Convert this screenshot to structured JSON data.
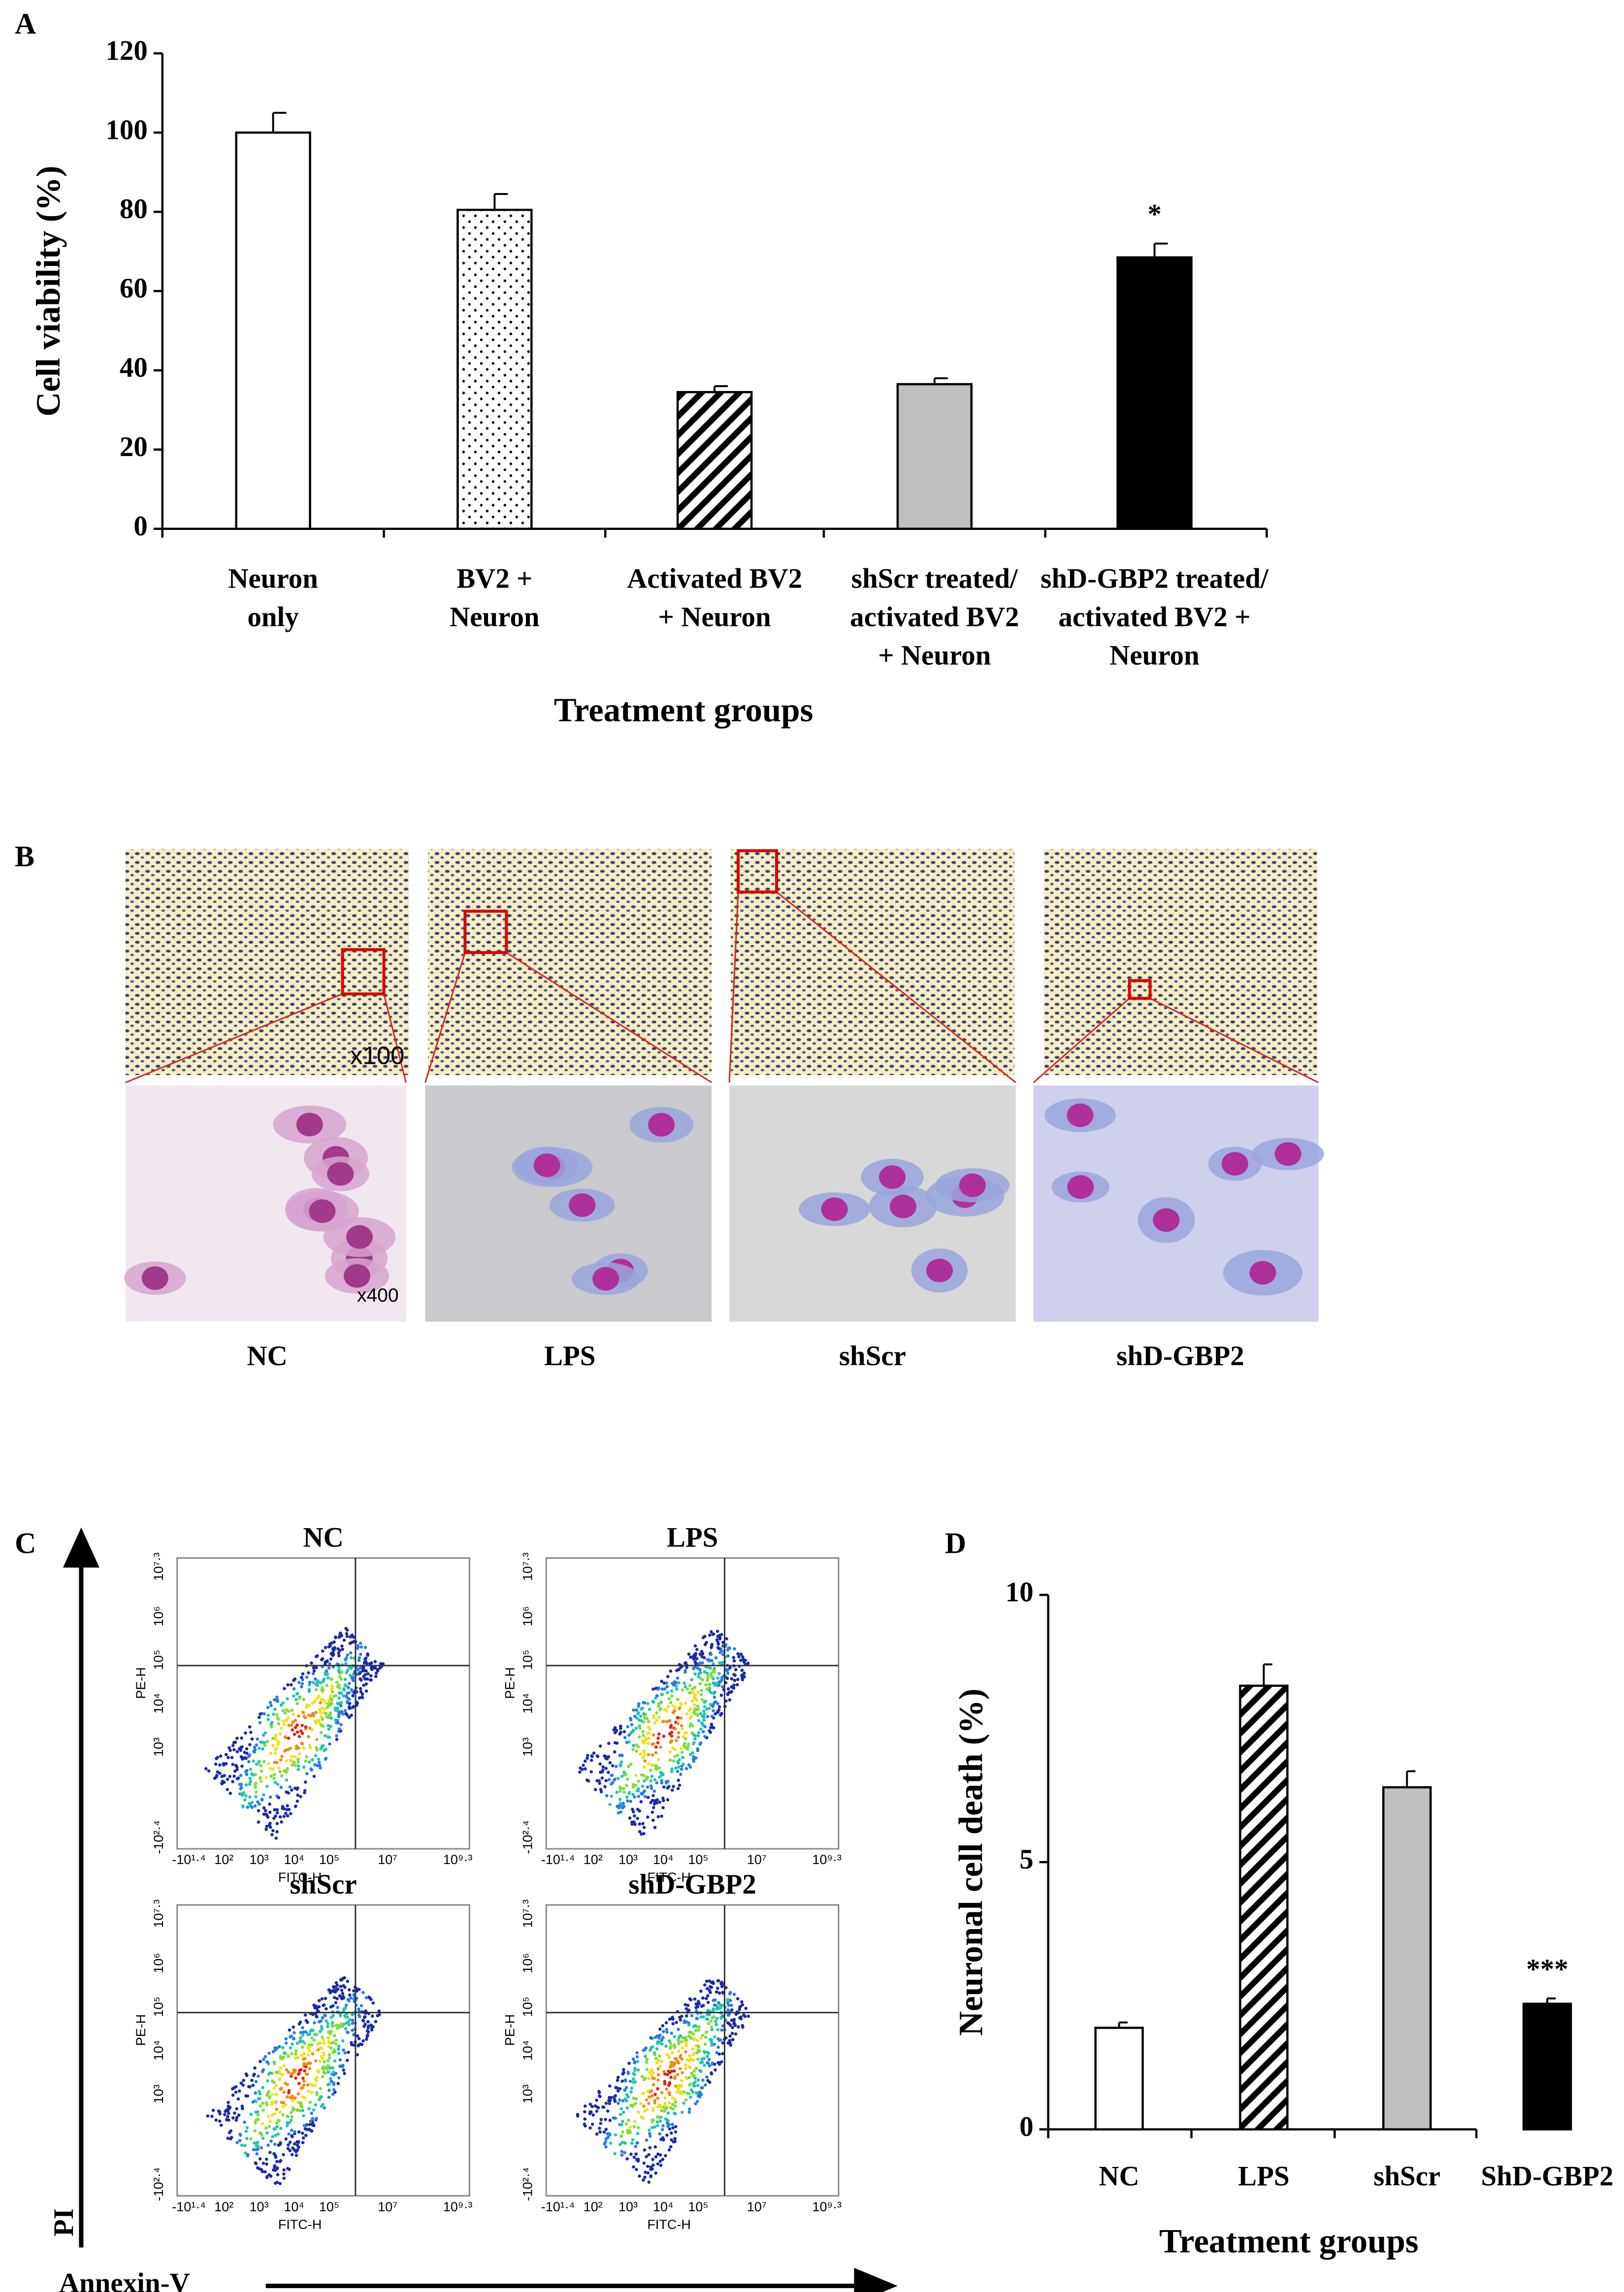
{
  "chart_data": [
    {
      "type": "bar",
      "panel": "A",
      "ylabel": "Cell viability (%)",
      "xlabel": "Treatment groups",
      "categories": [
        "Neuron\nonly",
        "BV2 +\nNeuron",
        "Activated BV2\n+ Neuron",
        "shScr treated/\nactivated BV2\n+ Neuron",
        "shD-GBP2 treated/\nactivated BV2 +\nNeuron"
      ],
      "values": [
        100,
        80.5,
        34.5,
        36.5,
        68.5
      ],
      "errors": [
        5,
        4,
        1.5,
        1.5,
        3.5
      ],
      "colors": [
        "#ffffff",
        "#ffffff",
        "#ffffff",
        "#c0c0c0",
        "#000000"
      ],
      "patterns": [
        "none",
        "dots",
        "hatch",
        "none",
        "none"
      ],
      "annotations": [
        {
          "text": "*",
          "index": 4
        }
      ],
      "ylim": [
        0,
        120
      ],
      "yticks": [
        0,
        20,
        40,
        60,
        80,
        100,
        120
      ]
    },
    {
      "type": "bar",
      "panel": "D",
      "ylabel": "Neuronal cell death (%)",
      "xlabel": "Treatment groups",
      "categories": [
        "NC",
        "LPS",
        "shScr",
        "ShD-GBP2"
      ],
      "values": [
        1.9,
        8.3,
        6.4,
        2.35
      ],
      "errors": [
        0.1,
        0.4,
        0.3,
        0.1
      ],
      "colors": [
        "#ffffff",
        "#ffffff",
        "#c0c0c0",
        "#000000"
      ],
      "patterns": [
        "none",
        "hatch",
        "none",
        "none"
      ],
      "annotations": [
        {
          "text": "***",
          "index": 3
        }
      ],
      "ylim": [
        0,
        10
      ],
      "yticks": [
        0,
        5,
        10
      ]
    }
  ],
  "micrographs": {
    "panel": "B",
    "labels": [
      "NC",
      "LPS",
      "shScr",
      "shD-GBP2"
    ],
    "magnifications": [
      "x100",
      "x400"
    ]
  },
  "flow": {
    "panel": "C",
    "titles": [
      "NC",
      "LPS",
      "shScr",
      "shD-GBP2"
    ],
    "x_label": "FITC-H",
    "y_label": "PE-H",
    "x_ticks": [
      "-10¹·⁴",
      "10²",
      "10³",
      "10⁴",
      "10⁵",
      "10⁷",
      "10⁹·³"
    ],
    "y_ticks": [
      "10⁷·³",
      "10⁶",
      "10⁵",
      "10⁴",
      "10³",
      "-10²·⁴"
    ],
    "axis_y": "PI",
    "axis_x": "Annexin-V"
  }
}
